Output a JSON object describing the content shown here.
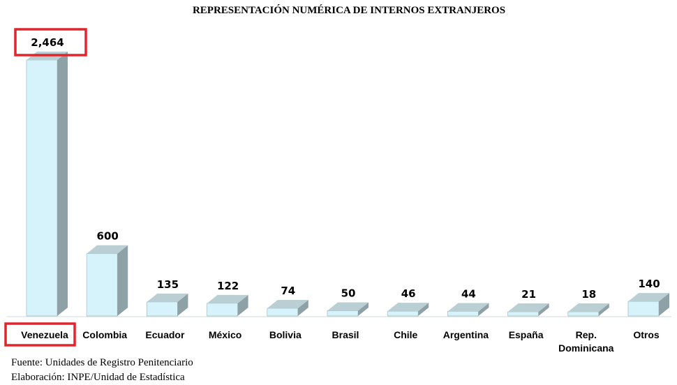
{
  "chart_data": {
    "type": "bar",
    "title": "REPRESENTACIÓN NUMÉRICA DE INTERNOS EXTRANJEROS",
    "categories": [
      "Venezuela",
      "Colombia",
      "Ecuador",
      "México",
      "Bolivia",
      "Brasil",
      "Chile",
      "Argentina",
      "España",
      "Rep. Dominicana",
      "Otros"
    ],
    "category_lines": [
      [
        "Venezuela"
      ],
      [
        "Colombia"
      ],
      [
        "Ecuador"
      ],
      [
        "México"
      ],
      [
        "Bolivia"
      ],
      [
        "Brasil"
      ],
      [
        "Chile"
      ],
      [
        "Argentina"
      ],
      [
        "España"
      ],
      [
        "Rep.",
        "Dominicana"
      ],
      [
        "Otros"
      ]
    ],
    "values": [
      2464,
      600,
      135,
      122,
      74,
      50,
      46,
      44,
      21,
      18,
      140
    ],
    "value_labels": [
      "2,464",
      "600",
      "135",
      "122",
      "74",
      "50",
      "46",
      "44",
      "21",
      "18",
      "140"
    ],
    "highlighted": [
      "Venezuela"
    ],
    "ylim": [
      0,
      2464
    ],
    "grid": false,
    "bar_color": "#d6f3fb",
    "bar_side_color": "#8ea1a6",
    "bar_top_color": "#b9cfd4",
    "highlight_color": "#e0262d"
  },
  "footer": {
    "source": "Fuente: Unidades de Registro Penitenciario",
    "elaboration": "Elaboración: INPE/Unidad de Estadística"
  }
}
